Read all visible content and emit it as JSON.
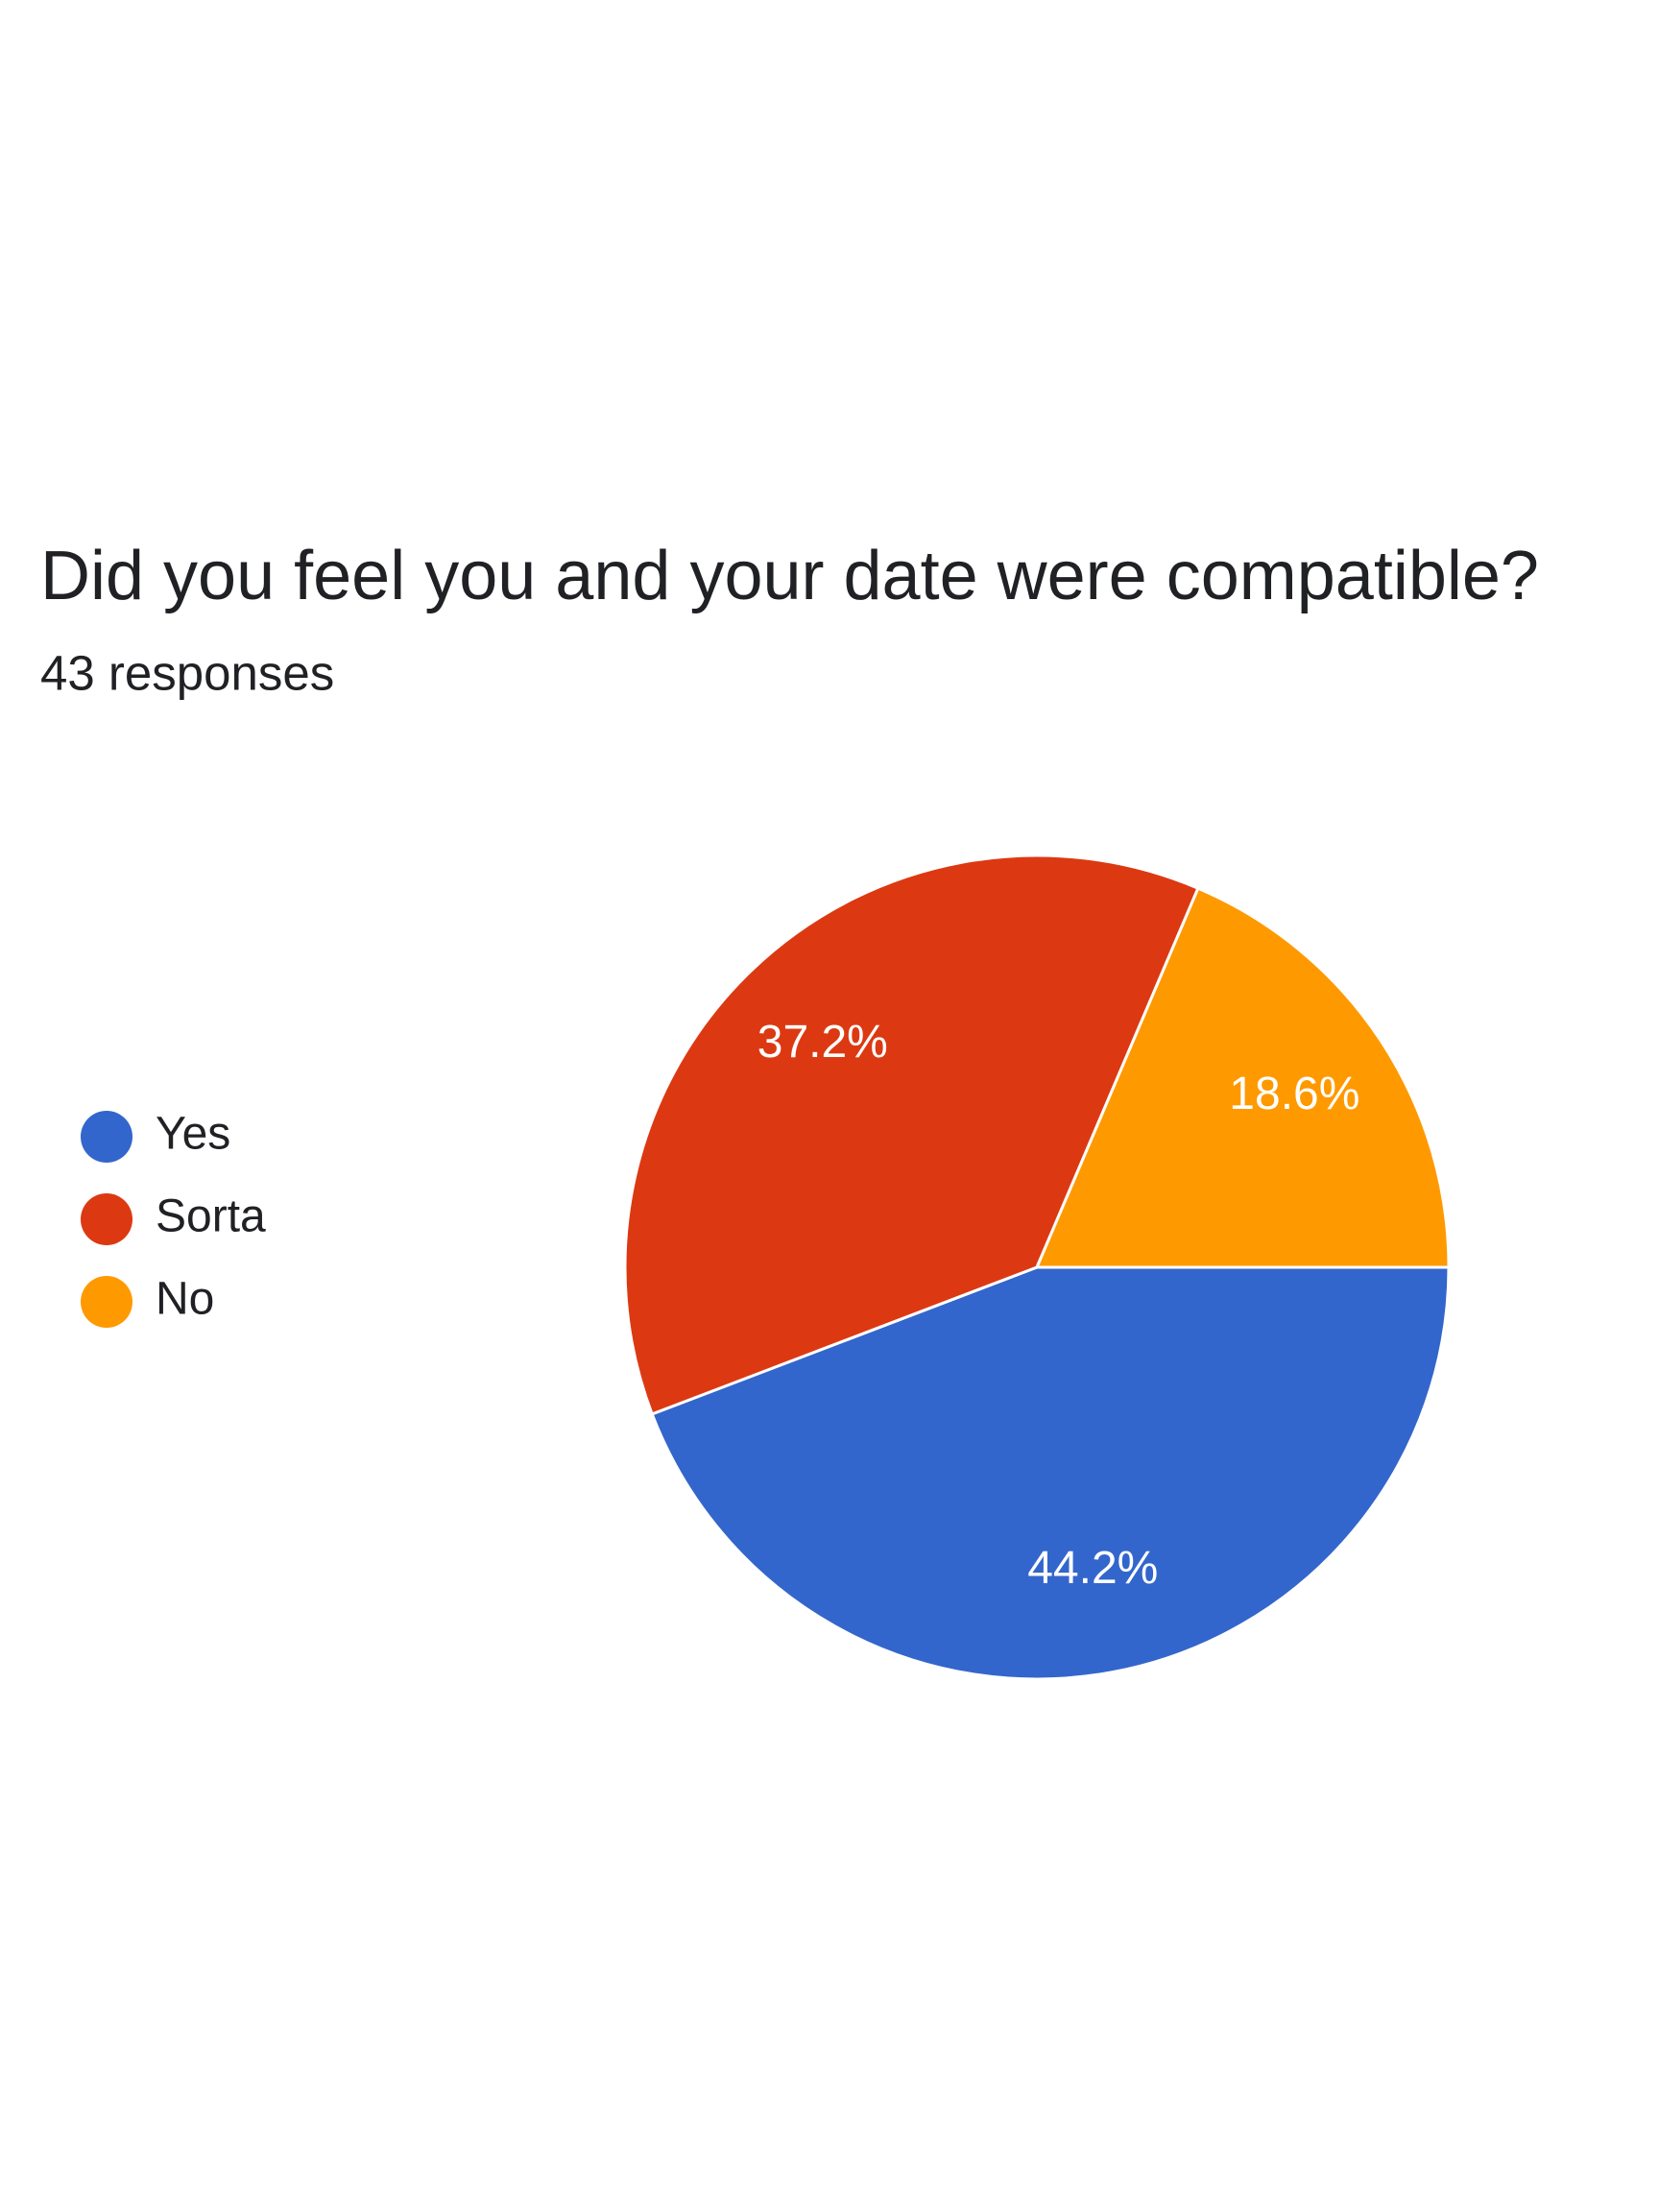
{
  "chart_data": {
    "type": "pie",
    "title": "Did you feel you and your date were compatible?",
    "subtitle": "43 responses",
    "categories": [
      "Yes",
      "Sorta",
      "No"
    ],
    "values": [
      44.2,
      37.2,
      18.6
    ],
    "value_labels": [
      "44.2%",
      "37.2%",
      "18.6%"
    ],
    "colors": [
      "#3366cc",
      "#dc3912",
      "#ff9900"
    ],
    "legend": "left"
  }
}
